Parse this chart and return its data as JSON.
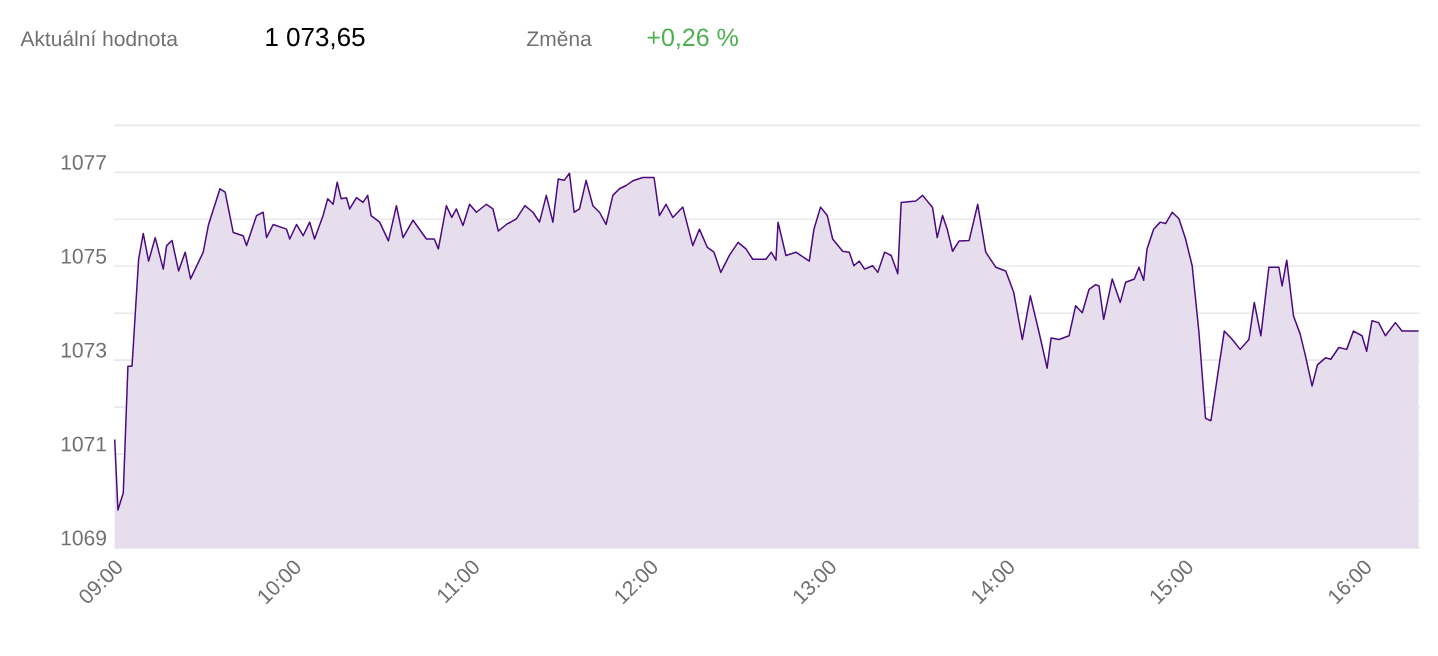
{
  "chart_data": {
    "type": "area",
    "annotations": [
      "Aktuální hodnota",
      "1 073,65",
      "Změna",
      "+0,26 %"
    ],
    "x": [
      9.004,
      9.022,
      9.052,
      9.078,
      9.101,
      9.138,
      9.164,
      9.194,
      9.231,
      9.276,
      9.295,
      9.325,
      9.362,
      9.399,
      9.429,
      9.5,
      9.53,
      9.594,
      9.623,
      9.668,
      9.724,
      9.743,
      9.799,
      9.836,
      9.855,
      9.892,
      9.967,
      9.985,
      10.023,
      10.06,
      10.097,
      10.124,
      10.172,
      10.198,
      10.228,
      10.251,
      10.273,
      10.303,
      10.321,
      10.359,
      10.396,
      10.422,
      10.441,
      10.489,
      10.538,
      10.583,
      10.62,
      10.676,
      10.751,
      10.795,
      10.818,
      10.863,
      10.893,
      10.919,
      10.956,
      10.993,
      11.031,
      11.087,
      11.124,
      11.154,
      11.199,
      11.255,
      11.303,
      11.348,
      11.385,
      11.423,
      11.46,
      11.49,
      11.523,
      11.553,
      11.579,
      11.609,
      11.646,
      11.684,
      11.721,
      11.758,
      11.796,
      11.833,
      11.87,
      11.908,
      11.964,
      12.027,
      12.057,
      12.094,
      12.132,
      12.188,
      12.244,
      12.281,
      12.326,
      12.363,
      12.401,
      12.449,
      12.498,
      12.542,
      12.58,
      12.654,
      12.684,
      12.71,
      12.722,
      12.766,
      12.822,
      12.897,
      12.923,
      12.96,
      12.998,
      13.028,
      13.084,
      13.121,
      13.147,
      13.177,
      13.207,
      13.252,
      13.281,
      13.319,
      13.356,
      13.393,
      13.412,
      13.494,
      13.532,
      13.588,
      13.614,
      13.644,
      13.67,
      13.7,
      13.737,
      13.793,
      13.841,
      13.886,
      13.942,
      13.998,
      14.043,
      14.091,
      14.136,
      14.185,
      14.23,
      14.252,
      14.297,
      14.353,
      14.39,
      14.427,
      14.465,
      14.502,
      14.521,
      14.547,
      14.595,
      14.64,
      14.67,
      14.719,
      14.745,
      14.771,
      14.79,
      14.827,
      14.864,
      14.894,
      14.931,
      14.969,
      15.006,
      15.043,
      15.081,
      15.118,
      15.148,
      15.193,
      15.223,
      15.268,
      15.312,
      15.361,
      15.391,
      15.428,
      15.473,
      15.529,
      15.547,
      15.573,
      15.611,
      15.648,
      15.678,
      15.715,
      15.745,
      15.79,
      15.82,
      15.865,
      15.909,
      15.947,
      15.995,
      16.021,
      16.051,
      16.088,
      16.126,
      16.182,
      16.219,
      16.312
    ],
    "values": [
      1071.31,
      1069.81,
      1070.17,
      1072.87,
      1072.87,
      1075.15,
      1075.7,
      1075.11,
      1075.61,
      1074.94,
      1075.44,
      1075.55,
      1074.9,
      1075.3,
      1074.73,
      1075.3,
      1075.89,
      1076.65,
      1076.58,
      1075.72,
      1075.65,
      1075.44,
      1076.08,
      1076.15,
      1075.61,
      1075.89,
      1075.79,
      1075.58,
      1075.89,
      1075.65,
      1075.94,
      1075.58,
      1076.08,
      1076.44,
      1076.32,
      1076.79,
      1076.44,
      1076.46,
      1076.22,
      1076.46,
      1076.36,
      1076.51,
      1076.08,
      1075.94,
      1075.54,
      1076.29,
      1075.61,
      1075.98,
      1075.58,
      1075.58,
      1075.37,
      1076.29,
      1076.04,
      1076.22,
      1075.87,
      1076.32,
      1076.15,
      1076.32,
      1076.22,
      1075.75,
      1075.89,
      1076.01,
      1076.29,
      1076.15,
      1075.94,
      1076.51,
      1075.94,
      1076.86,
      1076.83,
      1076.98,
      1076.15,
      1076.22,
      1076.83,
      1076.29,
      1076.15,
      1075.89,
      1076.51,
      1076.65,
      1076.72,
      1076.82,
      1076.89,
      1076.89,
      1076.08,
      1076.32,
      1076.04,
      1076.26,
      1075.44,
      1075.79,
      1075.4,
      1075.3,
      1074.87,
      1075.23,
      1075.51,
      1075.37,
      1075.15,
      1075.15,
      1075.3,
      1075.13,
      1075.94,
      1075.23,
      1075.3,
      1075.11,
      1075.79,
      1076.26,
      1076.08,
      1075.58,
      1075.32,
      1075.3,
      1075.01,
      1075.11,
      1074.94,
      1075.01,
      1074.87,
      1075.3,
      1075.23,
      1074.84,
      1076.36,
      1076.39,
      1076.51,
      1076.25,
      1075.61,
      1076.08,
      1075.79,
      1075.32,
      1075.54,
      1075.55,
      1076.32,
      1075.3,
      1074.98,
      1074.9,
      1074.44,
      1073.44,
      1074.37,
      1073.59,
      1072.83,
      1073.47,
      1073.44,
      1073.52,
      1074.16,
      1074.01,
      1074.51,
      1074.61,
      1074.58,
      1073.87,
      1074.73,
      1074.23,
      1074.66,
      1074.73,
      1074.98,
      1074.7,
      1075.37,
      1075.79,
      1075.94,
      1075.91,
      1076.15,
      1076.01,
      1075.58,
      1075.01,
      1073.59,
      1071.76,
      1071.71,
      1072.87,
      1073.62,
      1073.44,
      1073.23,
      1073.44,
      1074.23,
      1073.52,
      1074.98,
      1074.98,
      1074.58,
      1075.13,
      1073.94,
      1073.56,
      1073.09,
      1072.45,
      1072.9,
      1073.05,
      1073.02,
      1073.27,
      1073.23,
      1073.62,
      1073.52,
      1073.19,
      1073.84,
      1073.8,
      1073.52,
      1073.8,
      1073.62,
      1073.62
    ],
    "color": "#4b0a7d",
    "xlim": [
      9,
      16.32
    ],
    "xticks": [
      {
        "value": 9,
        "label": "09:00"
      },
      {
        "value": 10,
        "label": "10:00"
      },
      {
        "value": 11,
        "label": "11:00"
      },
      {
        "value": 12,
        "label": "12:00"
      },
      {
        "value": 13,
        "label": "13:00"
      },
      {
        "value": 14,
        "label": "14:00"
      },
      {
        "value": 15,
        "label": "15:00"
      },
      {
        "value": 16,
        "label": "16:00"
      }
    ],
    "ylim": [
      1069,
      1078
    ],
    "yticks": [
      1069,
      {
        "value": 1070,
        "label": null
      },
      1071,
      {
        "value": 1072,
        "label": null
      },
      1073,
      {
        "value": 1074,
        "label": null
      },
      1075,
      {
        "value": 1076,
        "label": null
      },
      1077,
      {
        "value": 1078,
        "label": null
      }
    ],
    "grid": "y",
    "marker": "none",
    "line_style": "solid"
  }
}
